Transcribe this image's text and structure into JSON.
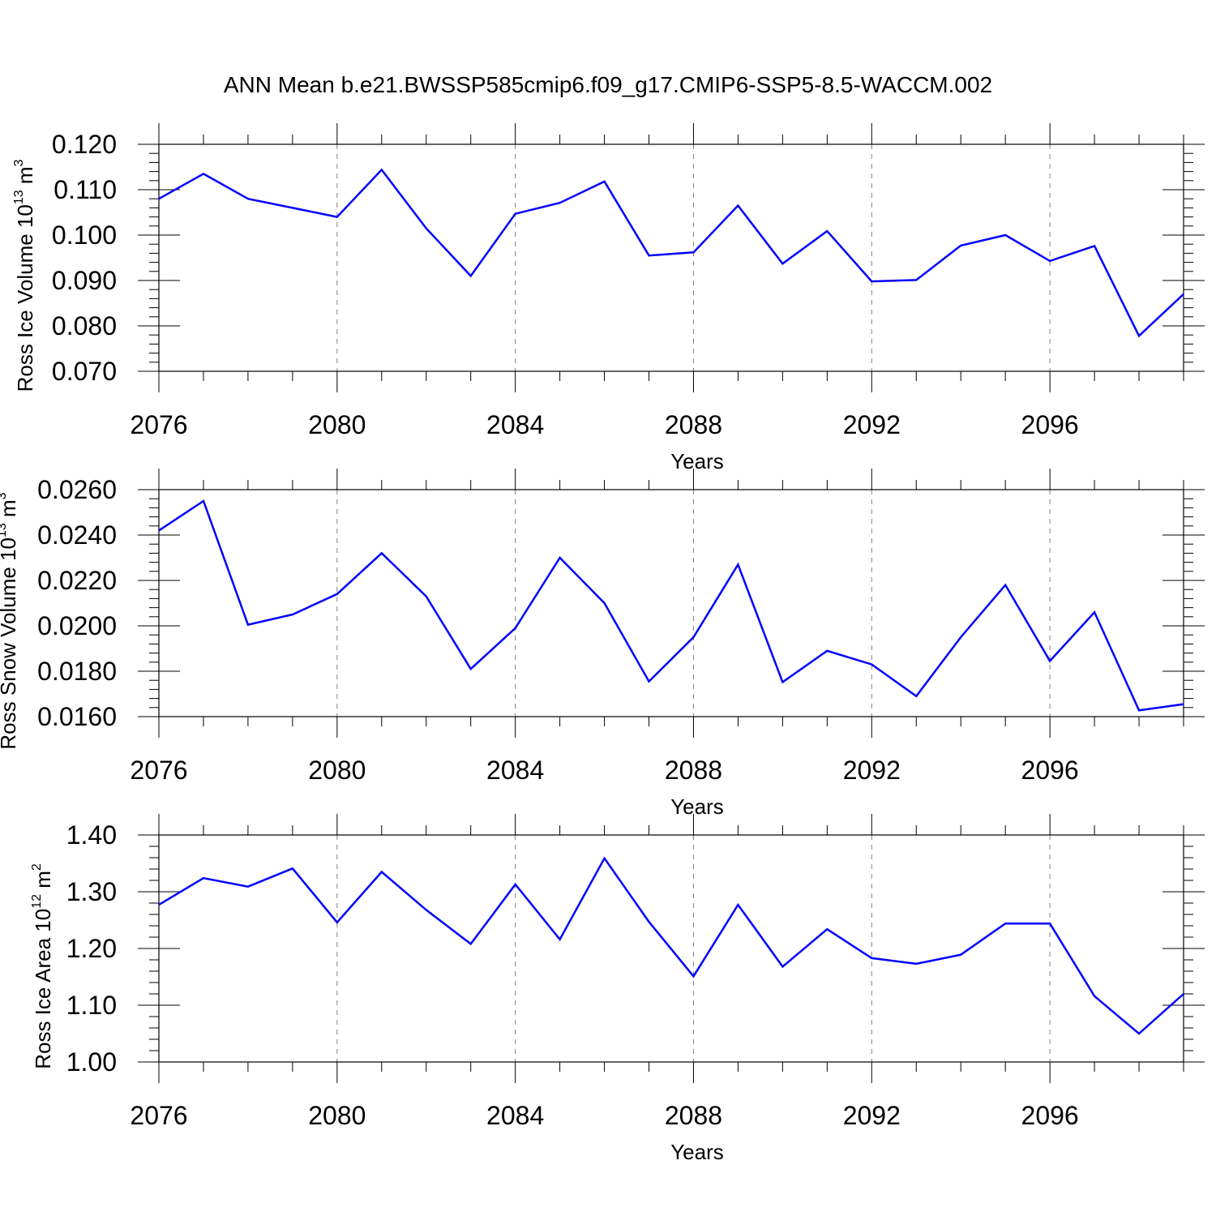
{
  "title": "ANN Mean b.e21.BWSSP585cmip6.f09_g17.CMIP6-SSP5-8.5-WACCM.002",
  "colors": {
    "line": "#0000ff",
    "axis": "#000000",
    "grid": "#808080"
  },
  "chart_data": [
    {
      "type": "line",
      "ylabel": {
        "base": "Ross Ice Volume 10",
        "exp": "13",
        "unit": " m",
        "unit_exp": "3"
      },
      "xlabel": "Years",
      "xlim": [
        2076,
        2099
      ],
      "ylim": [
        0.07,
        0.12
      ],
      "yticks": [
        "0.070",
        "0.080",
        "0.090",
        "0.100",
        "0.110",
        "0.120"
      ],
      "ytick_values": [
        0.07,
        0.08,
        0.09,
        0.1,
        0.11,
        0.12
      ],
      "xticks": [
        "2076",
        "2080",
        "2084",
        "2088",
        "2092",
        "2096"
      ],
      "grid": "vertical dashed at major x ticks",
      "series": [
        {
          "x": [
            2076,
            2077,
            2078,
            2079,
            2080,
            2081,
            2082,
            2083,
            2084,
            2085,
            2086,
            2087,
            2088,
            2089,
            2090,
            2091,
            2092,
            2093,
            2094,
            2095,
            2096,
            2097,
            2098,
            2099
          ],
          "values": [
            0.108,
            0.1135,
            0.108,
            0.106,
            0.104,
            0.1144,
            0.1015,
            0.091,
            0.1047,
            0.1071,
            0.1118,
            0.0955,
            0.0962,
            0.1065,
            0.0937,
            0.1009,
            0.0898,
            0.0901,
            0.0977,
            0.1,
            0.0943,
            0.0976,
            0.0778,
            0.087
          ]
        }
      ]
    },
    {
      "type": "line",
      "ylabel": {
        "base": "Ross Snow Volume 10",
        "exp": "13",
        "unit": " m",
        "unit_exp": "3"
      },
      "xlabel": "Years",
      "xlim": [
        2076,
        2099
      ],
      "ylim": [
        0.016,
        0.026
      ],
      "yticks": [
        "0.0160",
        "0.0180",
        "0.0200",
        "0.0220",
        "0.0240",
        "0.0260"
      ],
      "ytick_values": [
        0.016,
        0.018,
        0.02,
        0.022,
        0.024,
        0.026
      ],
      "xticks": [
        "2076",
        "2080",
        "2084",
        "2088",
        "2092",
        "2096"
      ],
      "grid": "vertical dashed at major x ticks",
      "series": [
        {
          "x": [
            2076,
            2077,
            2078,
            2079,
            2080,
            2081,
            2082,
            2083,
            2084,
            2085,
            2086,
            2087,
            2088,
            2089,
            2090,
            2091,
            2092,
            2093,
            2094,
            2095,
            2096,
            2097,
            2098,
            2099
          ],
          "values": [
            0.0242,
            0.0255,
            0.02005,
            0.0205,
            0.0214,
            0.0232,
            0.0213,
            0.0181,
            0.0199,
            0.023,
            0.021,
            0.01755,
            0.0195,
            0.0227,
            0.01752,
            0.0189,
            0.0183,
            0.0169,
            0.0195,
            0.0218,
            0.01845,
            0.0206,
            0.01628,
            0.01655
          ]
        }
      ]
    },
    {
      "type": "line",
      "ylabel": {
        "base": "Ross Ice Area 10",
        "exp": "12",
        "unit": " m",
        "unit_exp": "2"
      },
      "xlabel": "Years",
      "xlim": [
        2076,
        2099
      ],
      "ylim": [
        1.0,
        1.4
      ],
      "yticks": [
        "1.00",
        "1.10",
        "1.20",
        "1.30",
        "1.40"
      ],
      "ytick_values": [
        1.0,
        1.1,
        1.2,
        1.3,
        1.4
      ],
      "xticks": [
        "2076",
        "2080",
        "2084",
        "2088",
        "2092",
        "2096"
      ],
      "grid": "vertical dashed at major x ticks",
      "series": [
        {
          "x": [
            2076,
            2077,
            2078,
            2079,
            2080,
            2081,
            2082,
            2083,
            2084,
            2085,
            2086,
            2087,
            2088,
            2089,
            2090,
            2091,
            2092,
            2093,
            2094,
            2095,
            2096,
            2097,
            2098,
            2099
          ],
          "values": [
            1.277,
            1.324,
            1.309,
            1.341,
            1.246,
            1.335,
            1.268,
            1.208,
            1.313,
            1.216,
            1.359,
            1.247,
            1.151,
            1.277,
            1.168,
            1.234,
            1.183,
            1.173,
            1.189,
            1.244,
            1.244,
            1.116,
            1.05,
            1.12
          ]
        }
      ]
    }
  ]
}
